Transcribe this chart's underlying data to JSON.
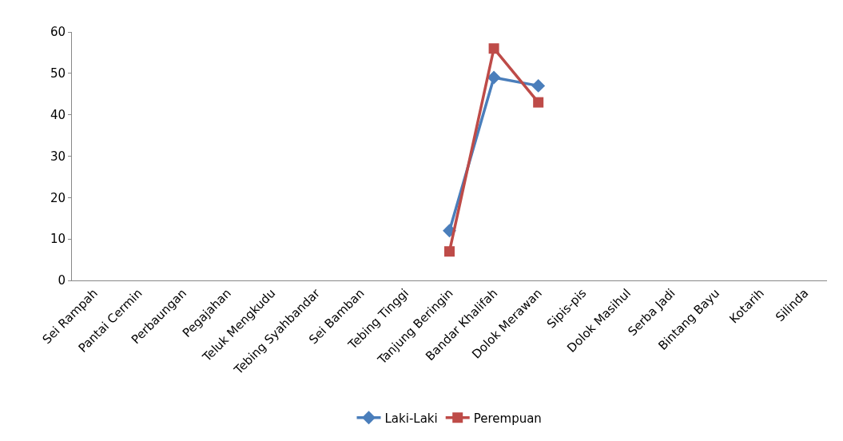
{
  "chart_data": {
    "type": "line",
    "categories": [
      "Sei Rampah",
      "Pantai Cermin",
      "Perbaungan",
      "Pegajahan",
      "Teluk Mengkudu",
      "Tebing Syahbandar",
      "Sei Bamban",
      "Tebing Tinggi",
      "Tanjung Beringin",
      "Bandar Khalifah",
      "Dolok Merawan",
      "Sipis-pis",
      "Dolok Masihul",
      "Serba Jadi",
      "Bintang Bayu",
      "Kotarih",
      "Silinda"
    ],
    "series": [
      {
        "name": "Laki-Laki",
        "color": "#4a7ebb",
        "marker": "diamond",
        "values": [
          null,
          null,
          null,
          null,
          null,
          null,
          null,
          null,
          12,
          49,
          47,
          null,
          null,
          null,
          null,
          null,
          null
        ]
      },
      {
        "name": "Perempuan",
        "color": "#be4b48",
        "marker": "square",
        "values": [
          null,
          null,
          null,
          null,
          null,
          null,
          null,
          null,
          7,
          56,
          43,
          null,
          null,
          null,
          null,
          null,
          null
        ]
      }
    ],
    "ylim": [
      0,
      60
    ],
    "yticks": [
      0,
      10,
      20,
      30,
      40,
      50,
      60
    ],
    "grid": false,
    "legend": "bottom",
    "line_style": "solid"
  }
}
